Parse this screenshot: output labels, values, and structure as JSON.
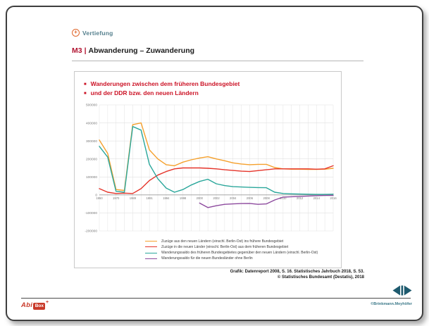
{
  "header": {
    "tag": "Vertiefung",
    "tag_icon": "plus-circle-icon",
    "module_code": "M3",
    "divider": "|",
    "title": "Abwanderung – Zuwanderung"
  },
  "chart_card": {
    "bullet": "■",
    "title_line1": "Wanderungen zwischen dem früheren Bundesgebiet",
    "title_line2": "und der DDR bzw. den neuen Ländern"
  },
  "source": {
    "line1": "Grafik: Datenreport 2008, S. 16. Statistisches Jahrbuch 2018, S. 53.",
    "line2": "© Statistisches Bundesamt (Destatis), 2018"
  },
  "footer": {
    "logo_text_abi": "Abi",
    "logo_text_box": "Box",
    "logo_star": "+",
    "copyright": "©Brinkmann.Meyhöfer",
    "nav_color": "#1e5a6e"
  },
  "colors": {
    "heading_red": "#b11431",
    "chart_title_red": "#cc1326",
    "tag_teal": "#56808e",
    "logo_red": "#c93a2a"
  },
  "chart_data": {
    "type": "line",
    "title": "Wanderungen zwischen dem früheren Bundesgebiet und der DDR bzw. den neuen Ländern",
    "grid": true,
    "legend_position": "bottom",
    "ylim": [
      -200000,
      500000
    ],
    "y_ticks": [
      500000,
      400000,
      300000,
      200000,
      100000,
      0,
      -100000,
      -200000
    ],
    "x_tick_labels": [
      "1950",
      "1970",
      "1989",
      "1991",
      "1994",
      "1998",
      "2000",
      "2002",
      "2004",
      "2006",
      "2008",
      "2010",
      "2012",
      "2014",
      "2016"
    ],
    "x_note": "point x values are tick indices 0–14; half steps are intermediate years",
    "series": [
      {
        "name": "Zuzüge aus den neuen Ländern (einschl. Berlin-Ost) ins frühere Bundesgebiet",
        "color": "#f5a02c",
        "points": [
          [
            0,
            305000
          ],
          [
            0.5,
            230000
          ],
          [
            1,
            30000
          ],
          [
            1.5,
            25000
          ],
          [
            2,
            390000
          ],
          [
            2.5,
            400000
          ],
          [
            3,
            250000
          ],
          [
            3.5,
            200000
          ],
          [
            4,
            168000
          ],
          [
            4.5,
            162000
          ],
          [
            5,
            182000
          ],
          [
            5.5,
            195000
          ],
          [
            6,
            205000
          ],
          [
            6.5,
            212000
          ],
          [
            7,
            200000
          ],
          [
            7.5,
            190000
          ],
          [
            8,
            178000
          ],
          [
            8.5,
            172000
          ],
          [
            9,
            168000
          ],
          [
            9.5,
            170000
          ],
          [
            10,
            170000
          ],
          [
            10.5,
            152000
          ],
          [
            11,
            145000
          ],
          [
            11.5,
            143000
          ],
          [
            12,
            143000
          ],
          [
            12.5,
            142000
          ],
          [
            13,
            142000
          ],
          [
            13.5,
            143000
          ],
          [
            14,
            148000
          ]
        ]
      },
      {
        "name": "Zuzüge in die neuen Länder (einschl. Berlin-Ost) aus dem früheren Bundesgebiet",
        "color": "#e5342a",
        "points": [
          [
            0,
            35000
          ],
          [
            0.5,
            15000
          ],
          [
            1,
            8000
          ],
          [
            1.5,
            10000
          ],
          [
            2,
            8000
          ],
          [
            2.5,
            35000
          ],
          [
            3,
            80000
          ],
          [
            3.5,
            110000
          ],
          [
            4,
            130000
          ],
          [
            4.5,
            145000
          ],
          [
            5,
            150000
          ],
          [
            5.5,
            150000
          ],
          [
            6,
            150000
          ],
          [
            6.5,
            148000
          ],
          [
            7,
            145000
          ],
          [
            7.5,
            140000
          ],
          [
            8,
            136000
          ],
          [
            8.5,
            132000
          ],
          [
            9,
            130000
          ],
          [
            9.5,
            135000
          ],
          [
            10,
            140000
          ],
          [
            10.5,
            145000
          ],
          [
            11,
            145000
          ],
          [
            11.5,
            145000
          ],
          [
            12,
            145000
          ],
          [
            12.5,
            145000
          ],
          [
            13,
            143000
          ],
          [
            13.5,
            145000
          ],
          [
            14,
            162000
          ]
        ]
      },
      {
        "name": "Wanderungssaldo des früheren Bundesgebietes gegenüber den neuen Ländern (einschl. Berlin-Ost)",
        "color": "#2ba79b",
        "points": [
          [
            0,
            270000
          ],
          [
            0.5,
            210000
          ],
          [
            1,
            20000
          ],
          [
            1.5,
            15000
          ],
          [
            2,
            380000
          ],
          [
            2.5,
            360000
          ],
          [
            3,
            170000
          ],
          [
            3.5,
            90000
          ],
          [
            4,
            38000
          ],
          [
            4.5,
            15000
          ],
          [
            5,
            30000
          ],
          [
            5.5,
            55000
          ],
          [
            6,
            75000
          ],
          [
            6.5,
            87000
          ],
          [
            7,
            62000
          ],
          [
            7.5,
            52000
          ],
          [
            8,
            46000
          ],
          [
            8.5,
            44000
          ],
          [
            9,
            42000
          ],
          [
            9.5,
            41000
          ],
          [
            10,
            40000
          ],
          [
            10.5,
            15000
          ],
          [
            11,
            8000
          ],
          [
            11.5,
            6000
          ],
          [
            12,
            5000
          ],
          [
            12.5,
            4000
          ],
          [
            13,
            3000
          ],
          [
            13.5,
            3000
          ],
          [
            14,
            4000
          ]
        ]
      },
      {
        "name": "Wanderungssaldo für die neuen Bundesländer ohne Berlin",
        "color": "#8d4a9e",
        "points": [
          [
            6,
            -45000
          ],
          [
            6.5,
            -70000
          ],
          [
            7,
            -60000
          ],
          [
            7.5,
            -52000
          ],
          [
            8,
            -50000
          ],
          [
            8.5,
            -48000
          ],
          [
            9,
            -47000
          ],
          [
            9.5,
            -52000
          ],
          [
            10,
            -50000
          ],
          [
            10.5,
            -28000
          ],
          [
            11,
            -12000
          ],
          [
            11.5,
            -10000
          ],
          [
            12,
            -8000
          ],
          [
            12.5,
            -6000
          ],
          [
            13,
            -4000
          ],
          [
            13.5,
            -3000
          ],
          [
            14,
            -3000
          ]
        ]
      }
    ]
  }
}
